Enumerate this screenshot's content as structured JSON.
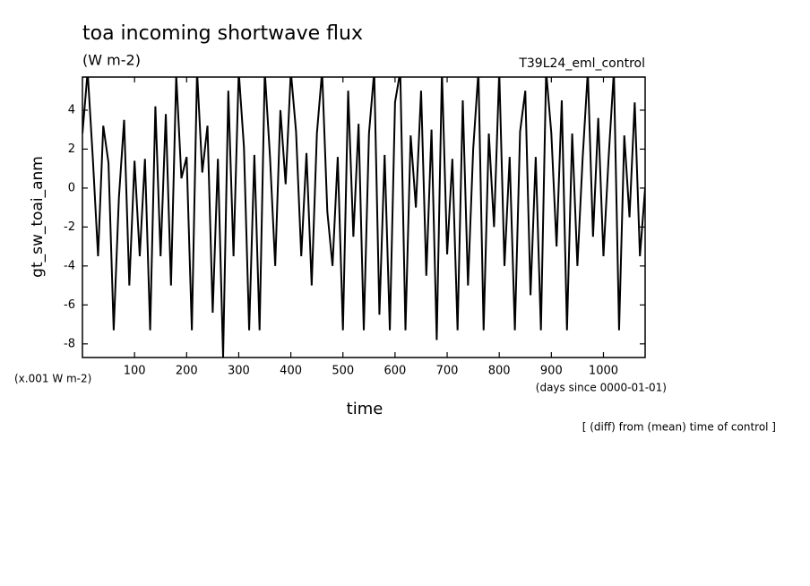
{
  "chart_data": {
    "type": "line",
    "title": "toa incoming shortwave flux",
    "subtitle": "(W m-2)",
    "run_label": "T39L24_eml_control",
    "y_label": "gt_sw_toai_anm",
    "y_unit_note": "(x.001 W m-2)",
    "x_label": "time",
    "x_unit_note": "(days since 0000-01-01)",
    "footnote": "[ (diff) from (mean) time of control ]",
    "xlim": [
      0,
      1080
    ],
    "ylim": [
      -8.7,
      5.7
    ],
    "xticks": [
      100,
      200,
      300,
      400,
      500,
      600,
      700,
      800,
      900,
      1000
    ],
    "yticks": [
      -8,
      -6,
      -4,
      -2,
      0,
      2,
      4
    ],
    "x": [
      0,
      10,
      20,
      30,
      40,
      50,
      60,
      70,
      80,
      90,
      100,
      110,
      120,
      130,
      140,
      150,
      160,
      170,
      180,
      190,
      200,
      210,
      220,
      230,
      240,
      250,
      260,
      270,
      280,
      290,
      300,
      310,
      320,
      330,
      340,
      350,
      360,
      370,
      380,
      390,
      400,
      410,
      420,
      430,
      440,
      450,
      460,
      470,
      480,
      490,
      500,
      510,
      520,
      530,
      540,
      550,
      560,
      570,
      580,
      590,
      600,
      610,
      620,
      630,
      640,
      650,
      660,
      670,
      680,
      690,
      700,
      710,
      720,
      730,
      740,
      750,
      760,
      770,
      780,
      790,
      800,
      810,
      820,
      830,
      840,
      850,
      860,
      870,
      880,
      890,
      900,
      910,
      920,
      930,
      940,
      950,
      960,
      970,
      980,
      990,
      1000,
      1010,
      1020,
      1030,
      1040,
      1050,
      1060,
      1070,
      1080
    ],
    "series": [
      {
        "color": "#000000",
        "values": [
          2.8,
          6,
          1.5,
          -3.5,
          3.2,
          1.3,
          -7.3,
          -0.5,
          3.5,
          -5,
          1.4,
          -3.5,
          1.5,
          -7.3,
          4.2,
          -3.5,
          3.8,
          -5,
          5.8,
          0.5,
          1.6,
          -7.3,
          6,
          0.8,
          3.2,
          -6.4,
          1.5,
          -8.7,
          5,
          -3.5,
          6,
          2.1,
          -7.3,
          1.7,
          -7.3,
          6,
          1.6,
          -4,
          4,
          0.2,
          6,
          2.9,
          -3.5,
          1.8,
          -5,
          2.8,
          6,
          -1.2,
          -4,
          1.6,
          -7.3,
          5,
          -2.5,
          3.3,
          -7.3,
          2.8,
          6,
          -6.5,
          1.7,
          -7.3,
          4.4,
          6,
          -7.3,
          2.7,
          -1,
          5,
          -4.5,
          3,
          -7.8,
          6,
          -3.4,
          1.5,
          -7.3,
          4.5,
          -5,
          2,
          6,
          -7.3,
          2.8,
          -2,
          6,
          -4,
          1.6,
          -7.3,
          2.9,
          5,
          -5.5,
          1.6,
          -7.3,
          6,
          2.8,
          -3,
          4.5,
          -7.3,
          2.8,
          -4,
          1.5,
          6,
          -2.5,
          3.6,
          -3.5,
          1.6,
          6,
          -7.3,
          2.7,
          -1.5,
          4.4,
          -3.5,
          0
        ]
      }
    ]
  }
}
